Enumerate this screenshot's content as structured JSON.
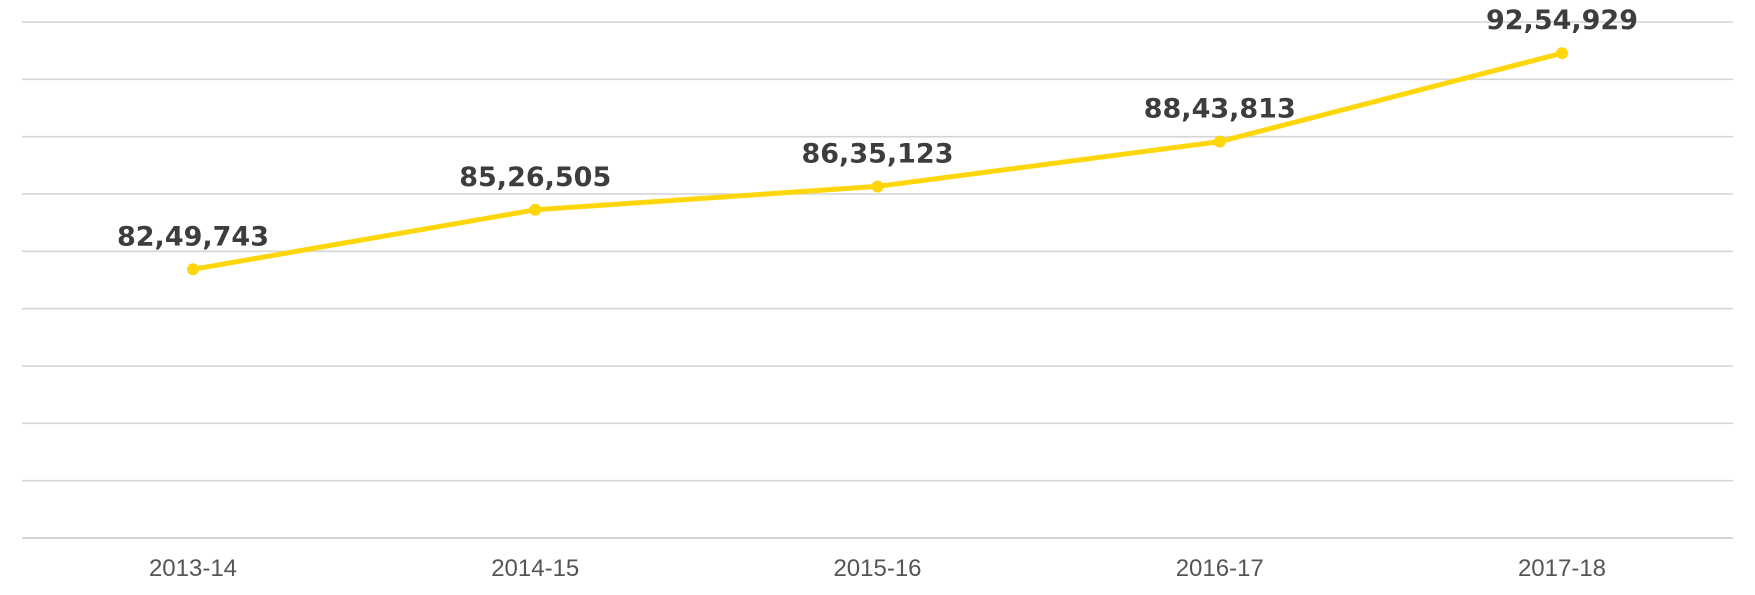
{
  "chart_data": {
    "type": "line",
    "title": "",
    "xlabel": "",
    "ylabel": "",
    "categories": [
      "2013-14",
      "2014-15",
      "2015-16",
      "2016-17",
      "2017-18"
    ],
    "series": [
      {
        "values": [
          8249743,
          8526505,
          8635123,
          8843813,
          9254929
        ],
        "data_labels": [
          "82,49,743",
          "85,26,505",
          "86,35,123",
          "88,43,813",
          "92,54,929"
        ],
        "color": "#FFD60A"
      }
    ],
    "ylim": [
      7000000,
      9400000
    ],
    "grid": true,
    "gridline_count": 9,
    "legend": "none"
  }
}
